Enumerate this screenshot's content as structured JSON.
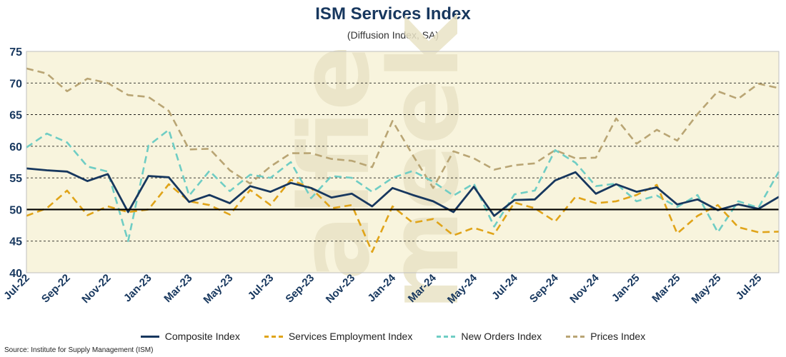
{
  "chart_data": {
    "type": "line",
    "title": "ISM Services Index",
    "subtitle": "(Diffusion Index, SA)",
    "source": "Source: Institute for Supply Management (ISM)",
    "watermark": "alfie meek",
    "ylim": [
      40,
      75
    ],
    "yticks": [
      40,
      45,
      50,
      55,
      60,
      65,
      70,
      75
    ],
    "reference_line": 50,
    "x": [
      "Jul-22",
      "Aug-22",
      "Sep-22",
      "Oct-22",
      "Nov-22",
      "Dec-22",
      "Jan-23",
      "Feb-23",
      "Mar-23",
      "Apr-23",
      "May-23",
      "Jun-23",
      "Jul-23",
      "Aug-23",
      "Sep-23",
      "Oct-23",
      "Nov-23",
      "Dec-23",
      "Jan-24",
      "Feb-24",
      "Mar-24",
      "Apr-24",
      "May-24",
      "Jun-24",
      "Jul-24",
      "Aug-24",
      "Sep-24",
      "Oct-24",
      "Nov-24",
      "Dec-24",
      "Jan-25",
      "Feb-25",
      "Mar-25",
      "Apr-25",
      "May-25",
      "Jun-25",
      "Jul-25",
      "Aug-25"
    ],
    "xtick_labels": [
      "Jul-22",
      "Sep-22",
      "Nov-22",
      "Jan-23",
      "Mar-23",
      "May-23",
      "Jul-23",
      "Sep-23",
      "Nov-23",
      "Jan-24",
      "Mar-24",
      "May-24",
      "Jul-24",
      "Sep-24",
      "Nov-24",
      "Jan-25",
      "Mar-25",
      "May-25",
      "Jul-25"
    ],
    "series": [
      {
        "name": "Composite Index",
        "color": "#17375e",
        "dashed": false,
        "values": [
          56.5,
          56.2,
          56.0,
          54.5,
          55.6,
          49.6,
          55.3,
          55.1,
          51.2,
          52.3,
          51.0,
          53.7,
          52.8,
          54.2,
          53.4,
          51.9,
          52.5,
          50.5,
          53.4,
          52.3,
          51.3,
          49.6,
          53.6,
          49.0,
          51.5,
          51.6,
          54.6,
          55.9,
          52.5,
          54.0,
          52.8,
          53.5,
          50.8,
          51.6,
          49.9,
          50.8,
          50.1,
          52.0
        ]
      },
      {
        "name": "Services Employment Index",
        "color": "#e0a419",
        "dashed": true,
        "values": [
          49.0,
          50.2,
          53.0,
          49.1,
          50.5,
          49.6,
          50.0,
          54.0,
          51.3,
          50.7,
          49.2,
          53.1,
          50.7,
          54.7,
          53.4,
          50.2,
          50.7,
          43.3,
          50.5,
          47.9,
          48.5,
          45.9,
          47.1,
          46.1,
          51.1,
          50.2,
          48.1,
          52.0,
          51.0,
          51.3,
          52.3,
          53.9,
          46.2,
          49.0,
          50.7,
          47.2,
          46.4,
          46.5
        ]
      },
      {
        "name": "New Orders Index",
        "color": "#6fcdc4",
        "dashed": true,
        "values": [
          59.8,
          62.0,
          60.6,
          56.8,
          56.0,
          45.0,
          60.1,
          62.6,
          52.2,
          56.1,
          52.9,
          55.5,
          55.0,
          57.5,
          51.8,
          55.3,
          55.0,
          52.8,
          55.0,
          56.1,
          54.4,
          52.2,
          54.1,
          47.3,
          52.4,
          53.0,
          59.4,
          57.4,
          53.7,
          54.1,
          51.3,
          52.2,
          50.4,
          52.3,
          46.4,
          51.3,
          50.3,
          56.0
        ]
      },
      {
        "name": "Prices Index",
        "color": "#b9a574",
        "dashed": true,
        "values": [
          72.3,
          71.5,
          68.7,
          70.7,
          70.0,
          68.1,
          67.8,
          65.6,
          59.5,
          59.6,
          56.2,
          54.1,
          56.8,
          58.9,
          58.9,
          58.0,
          57.7,
          56.7,
          64.0,
          58.6,
          53.4,
          59.2,
          58.1,
          56.3,
          57.0,
          57.3,
          59.4,
          58.1,
          58.2,
          64.4,
          60.4,
          62.6,
          60.9,
          65.1,
          68.7,
          67.5,
          69.9,
          69.2
        ]
      }
    ]
  }
}
